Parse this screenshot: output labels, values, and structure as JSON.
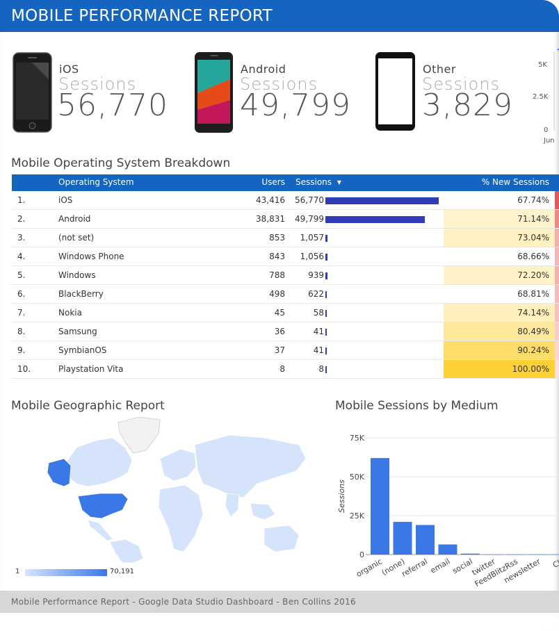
{
  "header": {
    "title": "MOBILE PERFORMANCE REPORT"
  },
  "kpis": [
    {
      "name": "iOS",
      "metric": "Sessions",
      "value": "56,770"
    },
    {
      "name": "Android",
      "metric": "Sessions",
      "value": "49,799"
    },
    {
      "name": "Other",
      "metric": "Sessions",
      "value": "3,829"
    }
  ],
  "mini_chart": {
    "ticks": [
      "5K",
      "2.5K",
      "0"
    ],
    "x_label": "Jun"
  },
  "table": {
    "title": "Mobile Operating System Breakdown",
    "columns": {
      "os": "Operating System",
      "users": "Users",
      "sessions": "Sessions",
      "sort_arrow": "▾",
      "new_sessions": "% New Sessions"
    },
    "rows": [
      {
        "idx": "1.",
        "os": "iOS",
        "users": "43,416",
        "sessions": "56,770",
        "sessions_value": 56770,
        "pct": "67.74%",
        "pct_value": 67.74
      },
      {
        "idx": "2.",
        "os": "Android",
        "users": "38,831",
        "sessions": "49,799",
        "sessions_value": 49799,
        "pct": "71.14%",
        "pct_value": 71.14
      },
      {
        "idx": "3.",
        "os": "(not set)",
        "users": "853",
        "sessions": "1,057",
        "sessions_value": 1057,
        "pct": "73.04%",
        "pct_value": 73.04
      },
      {
        "idx": "4.",
        "os": "Windows Phone",
        "users": "843",
        "sessions": "1,056",
        "sessions_value": 1056,
        "pct": "68.66%",
        "pct_value": 68.66
      },
      {
        "idx": "5.",
        "os": "Windows",
        "users": "788",
        "sessions": "939",
        "sessions_value": 939,
        "pct": "72.20%",
        "pct_value": 72.2
      },
      {
        "idx": "6.",
        "os": "BlackBerry",
        "users": "498",
        "sessions": "622",
        "sessions_value": 622,
        "pct": "68.81%",
        "pct_value": 68.81
      },
      {
        "idx": "7.",
        "os": "Nokia",
        "users": "45",
        "sessions": "58",
        "sessions_value": 58,
        "pct": "74.14%",
        "pct_value": 74.14
      },
      {
        "idx": "8.",
        "os": "Samsung",
        "users": "36",
        "sessions": "41",
        "sessions_value": 41,
        "pct": "80.49%",
        "pct_value": 80.49
      },
      {
        "idx": "9.",
        "os": "SymbianOS",
        "users": "37",
        "sessions": "41",
        "sessions_value": 41,
        "pct": "90.24%",
        "pct_value": 90.24
      },
      {
        "idx": "10.",
        "os": "Playstation Vita",
        "users": "8",
        "sessions": "8",
        "sessions_value": 8,
        "pct": "100.00%",
        "pct_value": 100.0
      }
    ]
  },
  "geo": {
    "title": "Mobile Geographic Report",
    "legend_min": "1",
    "legend_max": "70,191"
  },
  "medium": {
    "title": "Mobile Sessions by Medium"
  },
  "chart_data": {
    "type": "bar",
    "title": "Mobile Sessions by Medium",
    "ylabel": "Sessions",
    "xlabel": "",
    "ylim": [
      0,
      75000
    ],
    "yticks": [
      "0",
      "25K",
      "50K",
      "75K"
    ],
    "categories": [
      "organic",
      "(none)",
      "referral",
      "email",
      "social",
      "twitter",
      "FeedBlitzRss",
      "newsletter",
      "Ch"
    ],
    "values": [
      62000,
      21000,
      19000,
      6500,
      600,
      150,
      100,
      80,
      50
    ]
  },
  "footer": {
    "text": "Mobile Performance Report - Google Data Studio Dashboard - Ben Collins 2016"
  },
  "colors": {
    "header": "#1565c0",
    "bar": "#2e3db5",
    "chart_bar": "#3b78e7",
    "map_high": "#3b78e7",
    "map_low": "#d6e4fb"
  }
}
